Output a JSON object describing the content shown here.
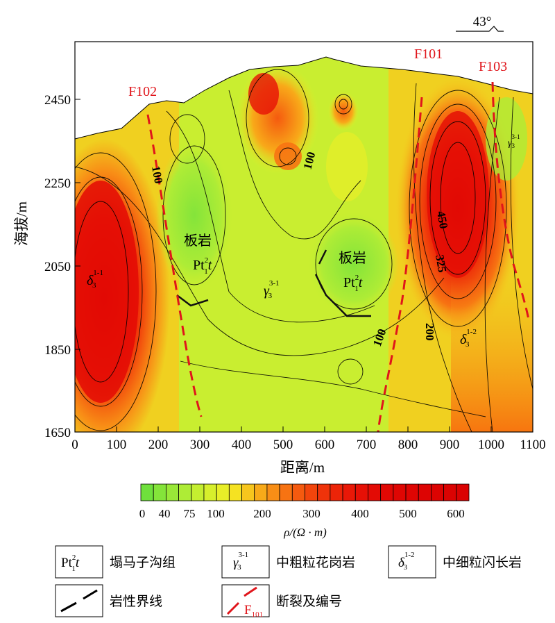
{
  "plot": {
    "ylabel": "海拔/m",
    "xlabel": "距离/m",
    "y_ticks": [
      "2450",
      "2250",
      "2050",
      "1850",
      "1650"
    ],
    "x_ticks": [
      "0",
      "100",
      "200",
      "300",
      "400",
      "500",
      "600",
      "700",
      "800",
      "900",
      "1000",
      "1100"
    ],
    "orientation": "43°",
    "faults": [
      "F102",
      "F101",
      "F103"
    ],
    "contour_labels": [
      "100",
      "100",
      "100",
      "450",
      "325",
      "200"
    ],
    "zones": [
      {
        "name": "板岩",
        "sym": "Pt",
        "sup": "2",
        "sub": "1",
        "tail": "t"
      },
      {
        "name": "板岩",
        "sym": "Pt",
        "sup": "2",
        "sub": "1",
        "tail": "t"
      },
      {
        "sym": "γ",
        "sup": "3-1",
        "sub": "3"
      },
      {
        "sym": "δ",
        "sup": "1-1",
        "sub": "3"
      },
      {
        "sym": "δ",
        "sup": "1-2",
        "sub": "3"
      },
      {
        "sym": "γ",
        "sup": "3-1",
        "sub": "3"
      }
    ]
  },
  "colorbar": {
    "ticks": [
      "0",
      "40",
      "75",
      "100",
      "200",
      "300",
      "400",
      "500",
      "600"
    ],
    "label": "ρ/(Ω · m)",
    "colors": [
      "#6fe03c",
      "#84e43a",
      "#99e838",
      "#aeec36",
      "#c4ee30",
      "#d7ef2c",
      "#e8ee28",
      "#f5e222",
      "#f7c61d",
      "#f8aa19",
      "#f88e16",
      "#f77312",
      "#f55a0f",
      "#f2450c",
      "#ef330a",
      "#ec2408",
      "#e91807",
      "#e61006",
      "#e30b05",
      "#e10804",
      "#df0603",
      "#de0503",
      "#dd0403",
      "#dc0302",
      "#db0302",
      "#da0202"
    ]
  },
  "legend": [
    {
      "sym": "Pt",
      "sup": "2",
      "sub": "1",
      "tail": "t",
      "text": "塌马子沟组"
    },
    {
      "sym": "γ",
      "sup": "3-1",
      "sub": "3",
      "text": "中粗粒花岗岩"
    },
    {
      "sym": "δ",
      "sup": "1-2",
      "sub": "3",
      "text": "中细粒闪长岩"
    },
    {
      "sym": "",
      "text": "岩性界线"
    },
    {
      "sym": "F",
      "sub": "101",
      "text": "断裂及编号"
    }
  ]
}
